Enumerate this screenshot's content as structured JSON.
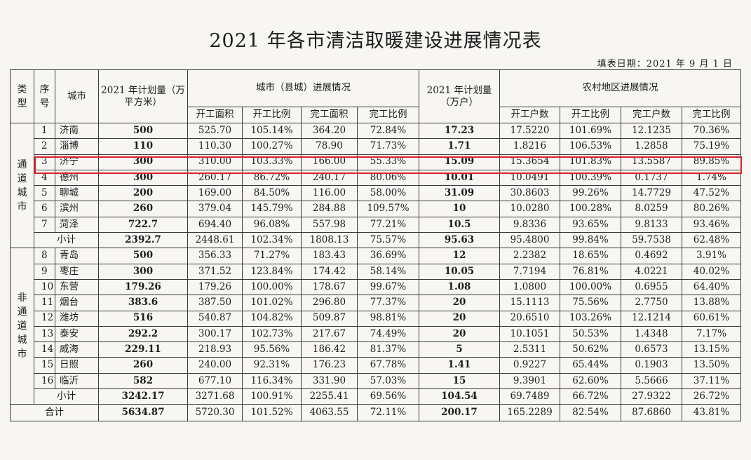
{
  "title": "2021 年各市清洁取暖建设进展情况表",
  "fill_date": "填表日期：2021 年 9 月 1 日",
  "headers": {
    "type": "类型",
    "seq": "序号",
    "city": "城市",
    "plan_area": "2021 年计划量（万平方米）",
    "city_progress": "城市（县城）进展情况",
    "plan_households": "2021 年计划量（万户）",
    "rural_progress": "农村地区进展情况",
    "start_area": "开工面积",
    "start_ratio": "开工比例",
    "done_area": "完工面积",
    "done_ratio": "完工比例",
    "start_households": "开工户数",
    "start_ratio2": "开工比例",
    "done_households": "完工户数",
    "done_ratio2": "完工比例"
  },
  "group1": {
    "label": "通道城市",
    "rows": [
      {
        "seq": "1",
        "city": "济南",
        "plan": "500",
        "sa": "525.70",
        "sr": "105.14%",
        "da": "364.20",
        "dr": "72.84%",
        "ph": "17.23",
        "sh": "17.5220",
        "shr": "101.69%",
        "dh": "12.1235",
        "dhr": "70.36%"
      },
      {
        "seq": "2",
        "city": "淄博",
        "plan": "110",
        "sa": "110.30",
        "sr": "100.27%",
        "da": "78.90",
        "dr": "71.73%",
        "ph": "1.71",
        "sh": "1.8216",
        "shr": "106.53%",
        "dh": "1.2858",
        "dhr": "75.19%"
      },
      {
        "seq": "3",
        "city": "济宁",
        "plan": "300",
        "sa": "310.00",
        "sr": "103.33%",
        "da": "166.00",
        "dr": "55.33%",
        "ph": "15.09",
        "sh": "15.3654",
        "shr": "101.83%",
        "dh": "13.5587",
        "dhr": "89.85%"
      },
      {
        "seq": "4",
        "city": "德州",
        "plan": "300",
        "sa": "260.17",
        "sr": "86.72%",
        "da": "240.17",
        "dr": "80.06%",
        "ph": "10.01",
        "sh": "10.0491",
        "shr": "100.39%",
        "dh": "0.1737",
        "dhr": "1.74%"
      },
      {
        "seq": "5",
        "city": "聊城",
        "plan": "200",
        "sa": "169.00",
        "sr": "84.50%",
        "da": "116.00",
        "dr": "58.00%",
        "ph": "31.09",
        "sh": "30.8603",
        "shr": "99.26%",
        "dh": "14.7729",
        "dhr": "47.52%"
      },
      {
        "seq": "6",
        "city": "滨州",
        "plan": "260",
        "sa": "379.04",
        "sr": "145.79%",
        "da": "284.88",
        "dr": "109.57%",
        "ph": "10",
        "sh": "10.0280",
        "shr": "100.28%",
        "dh": "8.0259",
        "dhr": "80.26%"
      },
      {
        "seq": "7",
        "city": "菏泽",
        "plan": "722.7",
        "sa": "694.40",
        "sr": "96.08%",
        "da": "557.98",
        "dr": "77.21%",
        "ph": "10.5",
        "sh": "9.8336",
        "shr": "93.65%",
        "dh": "9.8133",
        "dhr": "93.46%"
      }
    ],
    "subtotal": {
      "label": "小计",
      "plan": "2392.7",
      "sa": "2448.61",
      "sr": "102.34%",
      "da": "1808.13",
      "dr": "75.57%",
      "ph": "95.63",
      "sh": "95.4800",
      "shr": "99.84%",
      "dh": "59.7538",
      "dhr": "62.48%"
    }
  },
  "group2": {
    "label": "非通道城市",
    "rows": [
      {
        "seq": "8",
        "city": "青岛",
        "plan": "500",
        "sa": "356.33",
        "sr": "71.27%",
        "da": "183.43",
        "dr": "36.69%",
        "ph": "12",
        "sh": "2.2382",
        "shr": "18.65%",
        "dh": "0.4692",
        "dhr": "3.91%"
      },
      {
        "seq": "9",
        "city": "枣庄",
        "plan": "300",
        "sa": "371.52",
        "sr": "123.84%",
        "da": "174.42",
        "dr": "58.14%",
        "ph": "10.05",
        "sh": "7.7194",
        "shr": "76.81%",
        "dh": "4.0221",
        "dhr": "40.02%"
      },
      {
        "seq": "10",
        "city": "东营",
        "plan": "179.26",
        "sa": "179.26",
        "sr": "100.00%",
        "da": "178.67",
        "dr": "99.67%",
        "ph": "1.08",
        "sh": "1.0800",
        "shr": "100.00%",
        "dh": "0.6955",
        "dhr": "64.40%"
      },
      {
        "seq": "11",
        "city": "烟台",
        "plan": "383.6",
        "sa": "387.50",
        "sr": "101.02%",
        "da": "296.80",
        "dr": "77.37%",
        "ph": "20",
        "sh": "15.1113",
        "shr": "75.56%",
        "dh": "2.7750",
        "dhr": "13.88%"
      },
      {
        "seq": "12",
        "city": "潍坊",
        "plan": "516",
        "sa": "540.87",
        "sr": "104.82%",
        "da": "509.87",
        "dr": "98.81%",
        "ph": "20",
        "sh": "20.6510",
        "shr": "103.26%",
        "dh": "12.1214",
        "dhr": "60.61%"
      },
      {
        "seq": "13",
        "city": "泰安",
        "plan": "292.2",
        "sa": "300.17",
        "sr": "102.73%",
        "da": "217.67",
        "dr": "74.49%",
        "ph": "20",
        "sh": "10.1051",
        "shr": "50.53%",
        "dh": "1.4348",
        "dhr": "7.17%"
      },
      {
        "seq": "14",
        "city": "威海",
        "plan": "229.11",
        "sa": "218.93",
        "sr": "95.56%",
        "da": "186.42",
        "dr": "81.37%",
        "ph": "5",
        "sh": "2.5311",
        "shr": "50.62%",
        "dh": "0.6573",
        "dhr": "13.15%"
      },
      {
        "seq": "15",
        "city": "日照",
        "plan": "260",
        "sa": "240.00",
        "sr": "92.31%",
        "da": "176.23",
        "dr": "67.78%",
        "ph": "1.41",
        "sh": "0.9227",
        "shr": "65.44%",
        "dh": "0.1903",
        "dhr": "13.50%"
      },
      {
        "seq": "16",
        "city": "临沂",
        "plan": "582",
        "sa": "677.10",
        "sr": "116.34%",
        "da": "331.90",
        "dr": "57.03%",
        "ph": "15",
        "sh": "9.3901",
        "shr": "62.60%",
        "dh": "5.5666",
        "dhr": "37.11%"
      }
    ],
    "subtotal": {
      "label": "小计",
      "plan": "3242.17",
      "sa": "3271.68",
      "sr": "100.91%",
      "da": "2255.41",
      "dr": "69.56%",
      "ph": "104.54",
      "sh": "69.7489",
      "shr": "66.72%",
      "dh": "27.9322",
      "dhr": "26.72%"
    }
  },
  "total": {
    "label": "合计",
    "plan": "5634.87",
    "sa": "5720.30",
    "sr": "101.52%",
    "da": "4063.55",
    "dr": "72.11%",
    "ph": "200.17",
    "sh": "165.2289",
    "shr": "82.54%",
    "dh": "87.6860",
    "dhr": "43.81%"
  },
  "highlight_color": "#d82424"
}
